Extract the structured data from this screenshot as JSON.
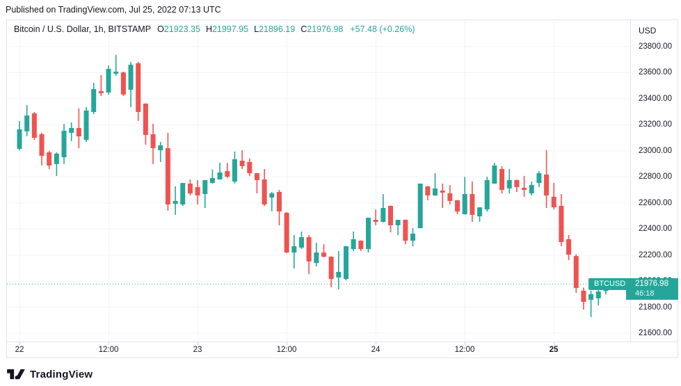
{
  "published": "Published on TradingView.com, Jul 25, 2022 07:13 UTC",
  "header": {
    "symbol": "Bitcoin / U.S. Dollar, 1h, BITSTAMP",
    "ohlc": [
      {
        "label": "O",
        "value": "21923.35"
      },
      {
        "label": "H",
        "value": "21997.95"
      },
      {
        "label": "L",
        "value": "21896.19"
      },
      {
        "label": "C",
        "value": "21976.98"
      }
    ],
    "change": "+57.48 (+0.26%)",
    "currency": "USD"
  },
  "price_label": {
    "symbol": "BTCUSD",
    "price": "21976.98",
    "countdown": "46:18"
  },
  "footer": {
    "brand": "TradingView",
    "logo_icon": "tradingview-logo"
  },
  "colors": {
    "up": "#26a69a",
    "down": "#ef5350",
    "grid": "#f0f3fa",
    "axis_border": "#e0e3eb",
    "text": "#131722",
    "last_price_line": "#26a69a",
    "badge_bg": "#26a69a"
  },
  "y_axis": {
    "labels": [
      "23800.00",
      "23600.00",
      "23400.00",
      "23200.00",
      "23000.00",
      "22800.00",
      "22600.00",
      "22400.00",
      "22200.00",
      "22000.00",
      "21800.00",
      "21600.00"
    ],
    "min": 21600,
    "max": 23800,
    "step": 200
  },
  "x_axis": {
    "ticks": [
      {
        "label": "22",
        "candle_index": 0,
        "bold": false
      },
      {
        "label": "12:00",
        "candle_index": 12,
        "bold": false
      },
      {
        "label": "23",
        "candle_index": 24,
        "bold": false
      },
      {
        "label": "12:00",
        "candle_index": 36,
        "bold": false
      },
      {
        "label": "24",
        "candle_index": 48,
        "bold": false
      },
      {
        "label": "12:00",
        "candle_index": 60,
        "bold": false
      },
      {
        "label": "25",
        "candle_index": 72,
        "bold": true
      }
    ]
  },
  "chart_data": {
    "type": "candlestick",
    "title": "Bitcoin / U.S. Dollar",
    "interval": "1h",
    "exchange": "BITSTAMP",
    "currency": "USD",
    "last_close": 21976.98,
    "change": 57.48,
    "change_pct": 0.26,
    "ylim": [
      21536,
      24003
    ],
    "grid": true,
    "candles_ohlc": [
      [
        23015,
        23229,
        23004,
        23165
      ],
      [
        23149,
        23351,
        23111,
        23271
      ],
      [
        23287,
        23298,
        23084,
        23100
      ],
      [
        23127,
        23138,
        22887,
        22962
      ],
      [
        22988,
        22999,
        22860,
        22887
      ],
      [
        22898,
        22988,
        22807,
        22978
      ],
      [
        22951,
        23207,
        22898,
        23154
      ],
      [
        23138,
        23218,
        23074,
        23175
      ],
      [
        23175,
        23325,
        23020,
        23111
      ],
      [
        23084,
        23336,
        23068,
        23309
      ],
      [
        23298,
        23522,
        23282,
        23474
      ],
      [
        23458,
        23581,
        23421,
        23442
      ],
      [
        23448,
        23656,
        23432,
        23629
      ],
      [
        23592,
        23736,
        23576,
        23608
      ],
      [
        23602,
        23608,
        23421,
        23432
      ],
      [
        23469,
        23683,
        23335,
        23661
      ],
      [
        23672,
        23683,
        23229,
        23298
      ],
      [
        23362,
        23365,
        23047,
        23122
      ],
      [
        23127,
        23207,
        22898,
        23020
      ],
      [
        23004,
        23068,
        22914,
        23042
      ],
      [
        23020,
        23138,
        22540,
        22588
      ],
      [
        22593,
        22727,
        22508,
        22615
      ],
      [
        22588,
        22753,
        22577,
        22753
      ],
      [
        22748,
        22780,
        22657,
        22673
      ],
      [
        22721,
        22775,
        22588,
        22657
      ],
      [
        22668,
        22775,
        22561,
        22775
      ],
      [
        22753,
        22855,
        22748,
        22791
      ],
      [
        22780,
        22908,
        22780,
        22834
      ],
      [
        22844,
        22908,
        22791,
        22801
      ],
      [
        22764,
        22994,
        22748,
        22935
      ],
      [
        22924,
        23004,
        22860,
        22882
      ],
      [
        22914,
        22941,
        22807,
        22828
      ],
      [
        22828,
        22830,
        22673,
        22775
      ],
      [
        22780,
        22860,
        22577,
        22588
      ],
      [
        22641,
        22684,
        22534,
        22673
      ],
      [
        22684,
        22700,
        22428,
        22534
      ],
      [
        22524,
        22530,
        22214,
        22219
      ],
      [
        22219,
        22353,
        22096,
        22267
      ],
      [
        22257,
        22380,
        22246,
        22337
      ],
      [
        22337,
        22353,
        22054,
        22150
      ],
      [
        22139,
        22294,
        22112,
        22219
      ],
      [
        22219,
        22283,
        22182,
        22187
      ],
      [
        22187,
        22190,
        21952,
        22016
      ],
      [
        22027,
        22230,
        21936,
        22070
      ],
      [
        22016,
        22270,
        22005,
        22267
      ],
      [
        22246,
        22380,
        22230,
        22321
      ],
      [
        22310,
        22312,
        22230,
        22246
      ],
      [
        22246,
        22486,
        22219,
        22486
      ],
      [
        22470,
        22550,
        22428,
        22454
      ],
      [
        22454,
        22668,
        22450,
        22561
      ],
      [
        22577,
        22580,
        22374,
        22428
      ],
      [
        22428,
        22470,
        22353,
        22470
      ],
      [
        22470,
        22472,
        22283,
        22310
      ],
      [
        22310,
        22406,
        22267,
        22364
      ],
      [
        22406,
        22748,
        22406,
        22748
      ],
      [
        22727,
        22730,
        22620,
        22657
      ],
      [
        22657,
        22828,
        22655,
        22711
      ],
      [
        22695,
        22748,
        22561,
        22679
      ],
      [
        22673,
        22737,
        22588,
        22615
      ],
      [
        22620,
        22622,
        22513,
        22534
      ],
      [
        22513,
        22800,
        22510,
        22668
      ],
      [
        22668,
        22764,
        22455,
        22508
      ],
      [
        22497,
        22566,
        22455,
        22566
      ],
      [
        22550,
        22801,
        22534,
        22775
      ],
      [
        22748,
        22908,
        22748,
        22887
      ],
      [
        22860,
        22882,
        22673,
        22700
      ],
      [
        22711,
        22860,
        22673,
        22775
      ],
      [
        22775,
        22778,
        22684,
        22721
      ],
      [
        22716,
        22807,
        22647,
        22700
      ],
      [
        22673,
        22764,
        22657,
        22737
      ],
      [
        22753,
        22844,
        22721,
        22828
      ],
      [
        22818,
        23004,
        22561,
        22657
      ],
      [
        22647,
        22753,
        22550,
        22566
      ],
      [
        22577,
        22668,
        22267,
        22299
      ],
      [
        22321,
        22353,
        22160,
        22203
      ],
      [
        22192,
        22205,
        21910,
        21947
      ],
      [
        21926,
        21950,
        21781,
        21840
      ],
      [
        21856,
        21926,
        21723,
        21899
      ],
      [
        21867,
        21945,
        21813,
        21920
      ],
      [
        21923.35,
        21997.95,
        21896.19,
        21976.98
      ]
    ]
  }
}
